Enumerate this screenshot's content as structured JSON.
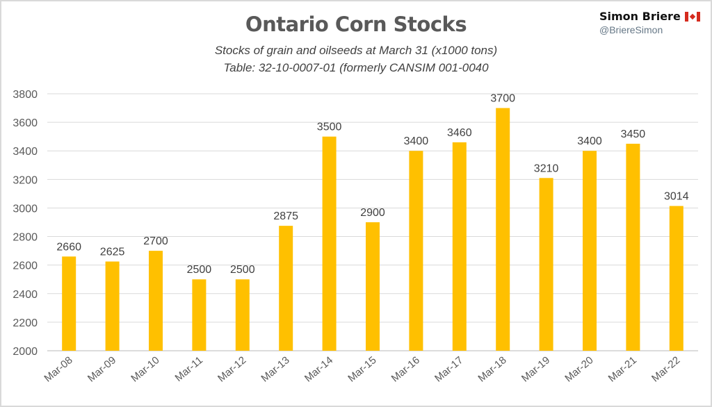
{
  "chart_data": {
    "type": "bar",
    "title": "Ontario Corn Stocks",
    "subtitle": "Stocks of grain and oilseeds at March 31 (x1000 tons)",
    "subtitle2": "Table: 32-10-0007-01 (formerly CANSIM 001-0040",
    "xlabel": "",
    "ylabel": "",
    "categories": [
      "Mar-08",
      "Mar-09",
      "Mar-10",
      "Mar-11",
      "Mar-12",
      "Mar-13",
      "Mar-14",
      "Mar-15",
      "Mar-16",
      "Mar-17",
      "Mar-18",
      "Mar-19",
      "Mar-20",
      "Mar-21",
      "Mar-22"
    ],
    "values": [
      2660,
      2625,
      2700,
      2500,
      2500,
      2875,
      3500,
      2900,
      3400,
      3460,
      3700,
      3210,
      3400,
      3450,
      3014
    ],
    "ylim": [
      2000,
      3800
    ],
    "yticks": [
      "2000",
      "2200",
      "2400",
      "2600",
      "2800",
      "3000",
      "3200",
      "3400",
      "3600",
      "3800"
    ],
    "grid": true,
    "legend": "none",
    "bar_color": "#FFC000",
    "data_labels": true
  },
  "branding": {
    "name": "Simon Briere",
    "handle": "@BriereSimon",
    "flag_icon": "canada-flag-icon",
    "flag_red": "#d52b1e"
  }
}
